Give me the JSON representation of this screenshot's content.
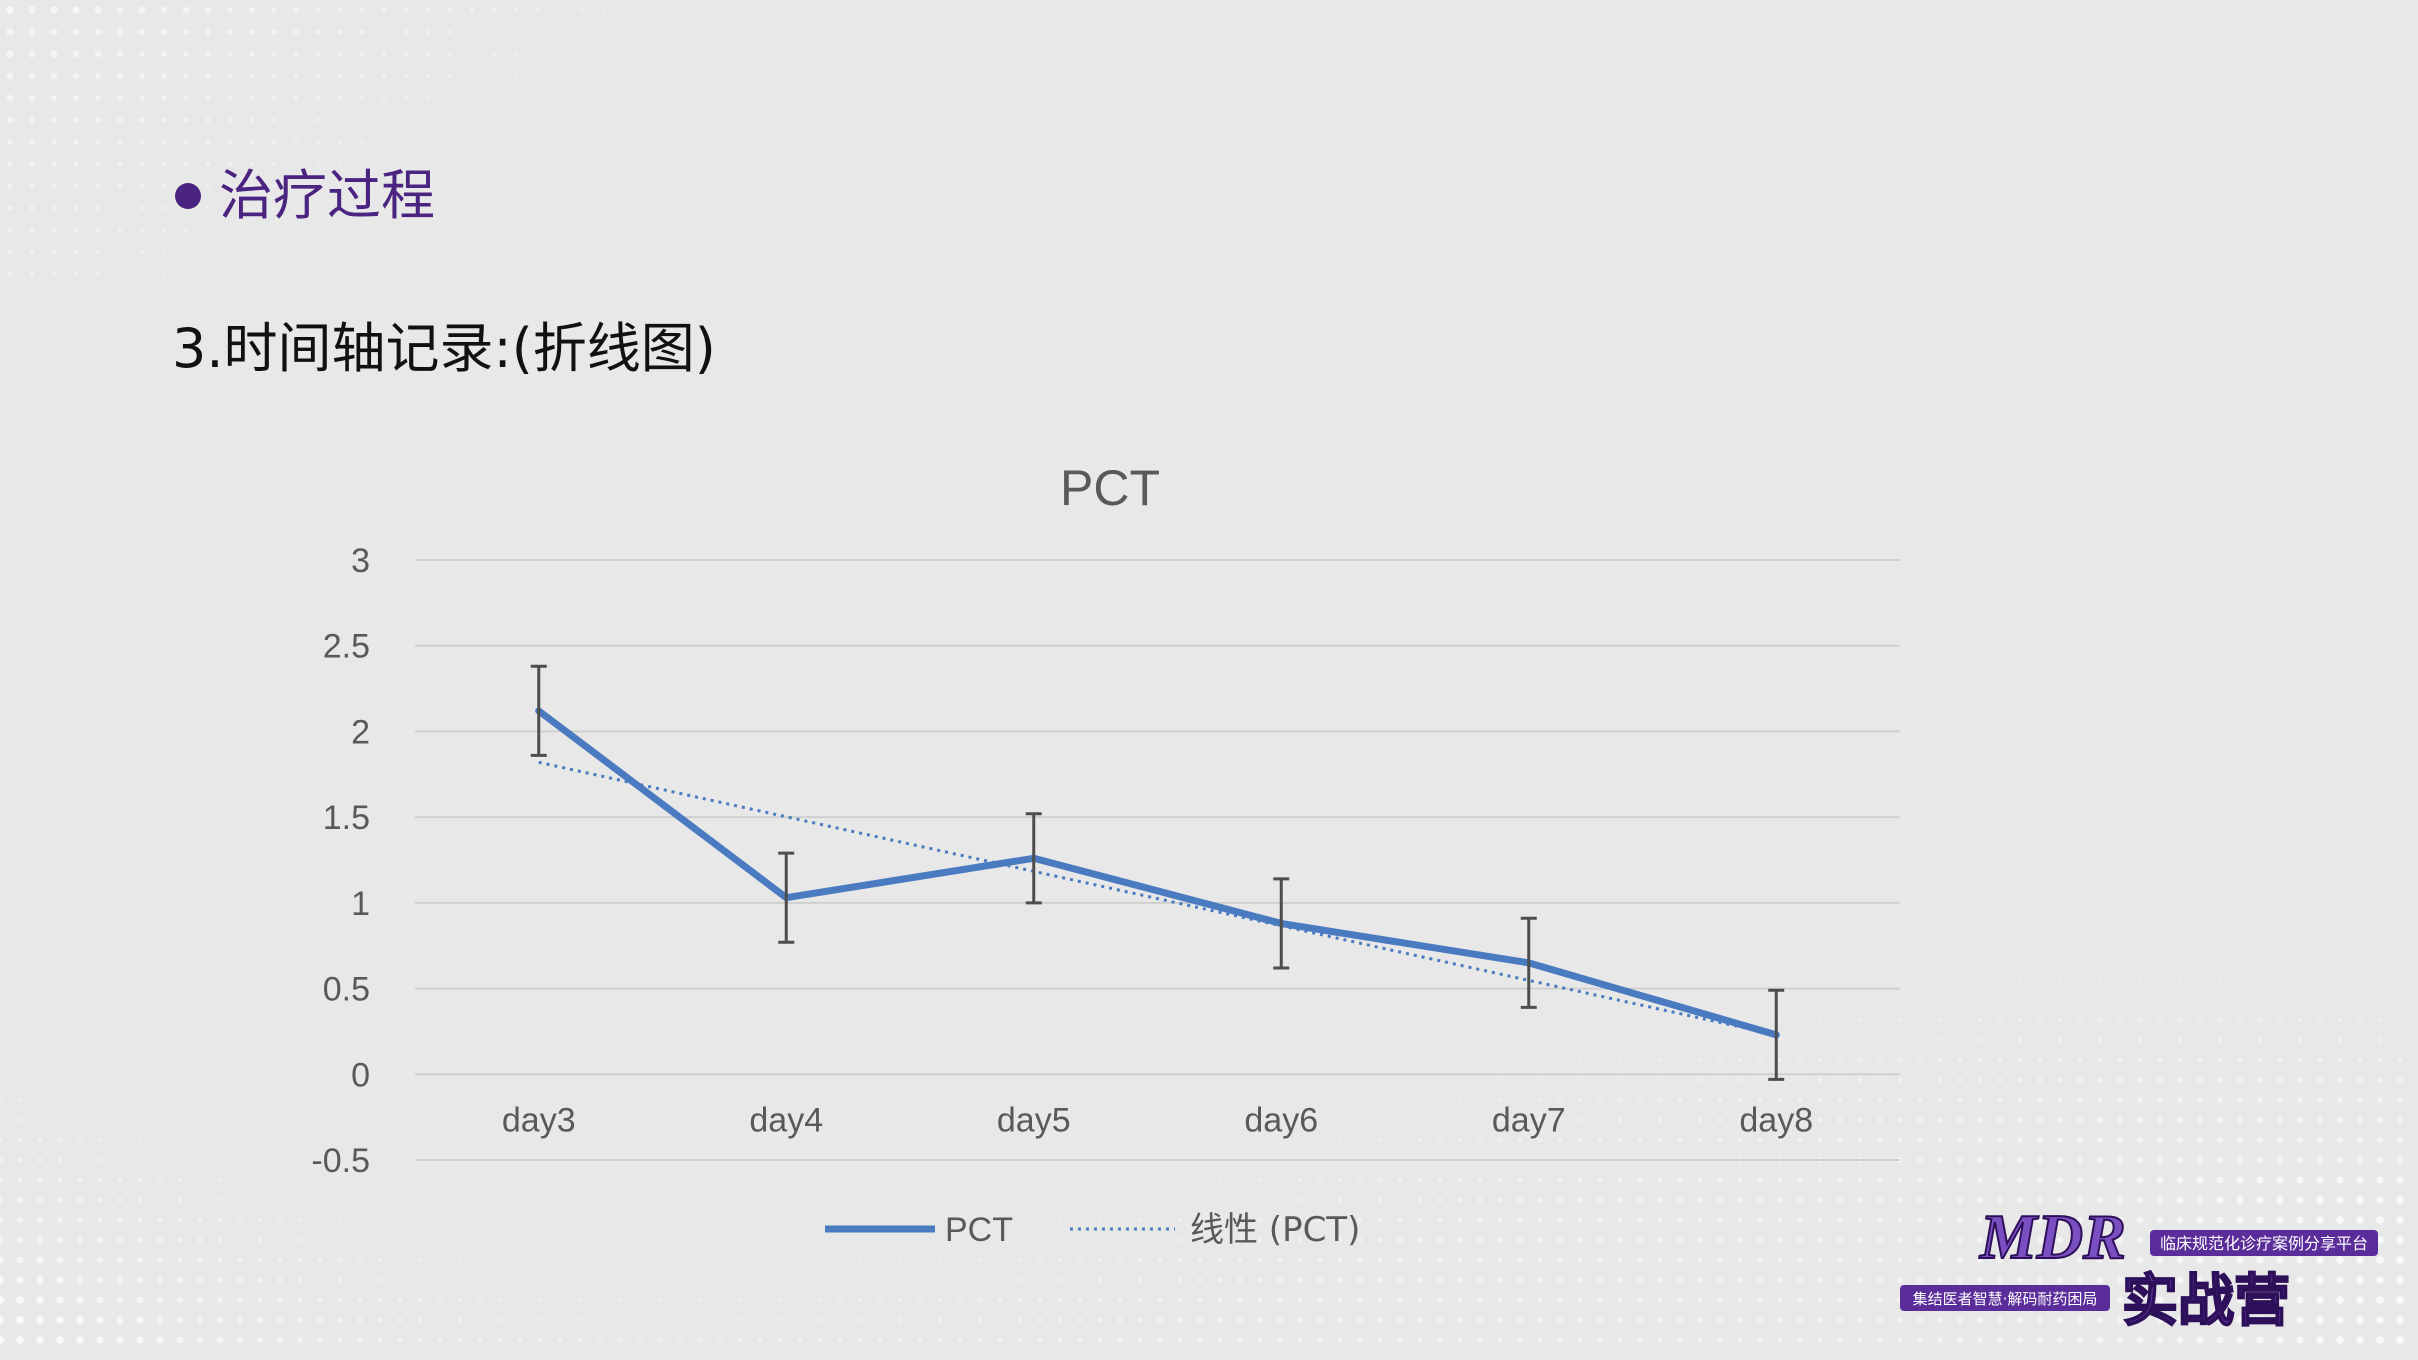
{
  "section": {
    "bullet_title": "治疗过程",
    "subtitle": "3.时间轴记录:(折线图)"
  },
  "colors": {
    "accent": "#4a2480",
    "series": "#4a7bc1",
    "grid": "#d0d0d0",
    "text": "#595959"
  },
  "chart_data": {
    "type": "line",
    "title": "PCT",
    "categories": [
      "day3",
      "day4",
      "day5",
      "day6",
      "day7",
      "day8"
    ],
    "series": [
      {
        "name": "PCT",
        "values": [
          2.12,
          1.03,
          1.26,
          0.88,
          0.65,
          0.23
        ],
        "error": [
          0.26,
          0.26,
          0.26,
          0.26,
          0.26,
          0.26
        ]
      }
    ],
    "trendline": {
      "name": "线性 (PCT)",
      "type": "linear",
      "start": 1.82,
      "end": 0.23
    },
    "yticks": [
      "3",
      "2.5",
      "2",
      "1.5",
      "1",
      "0.5",
      "0",
      "-0.5"
    ],
    "ylim": [
      -0.5,
      3
    ],
    "grid": true,
    "legend_position": "bottom"
  },
  "logo": {
    "main": "MDR",
    "tagline": "临床规范化诊疗案例分享平台",
    "sub_left": "集结医者智慧·解码耐药困局",
    "sub_right": "实战营"
  }
}
